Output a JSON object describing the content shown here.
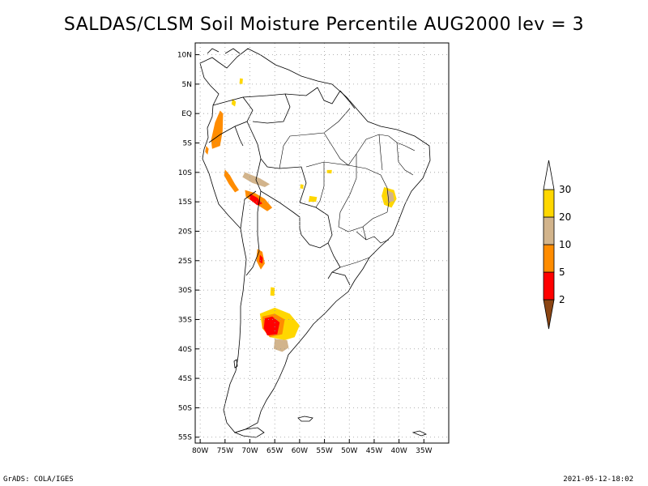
{
  "chart_data": {
    "type": "heatmap",
    "title": "SALDAS/CLSM Soil Moisture Percentile AUG2000 lev = 3",
    "map_extent": {
      "lon": [
        -81,
        -30
      ],
      "lat": [
        -56,
        12
      ]
    },
    "x_ticks": [
      {
        "lon": -80,
        "label": "80W"
      },
      {
        "lon": -75,
        "label": "75W"
      },
      {
        "lon": -70,
        "label": "70W"
      },
      {
        "lon": -65,
        "label": "65W"
      },
      {
        "lon": -60,
        "label": "60W"
      },
      {
        "lon": -55,
        "label": "55W"
      },
      {
        "lon": -50,
        "label": "50W"
      },
      {
        "lon": -45,
        "label": "45W"
      },
      {
        "lon": -40,
        "label": "40W"
      },
      {
        "lon": -35,
        "label": "35W"
      }
    ],
    "y_ticks": [
      {
        "lat": 10,
        "label": "10N"
      },
      {
        "lat": 5,
        "label": "5N"
      },
      {
        "lat": 0,
        "label": "EQ"
      },
      {
        "lat": -5,
        "label": "5S"
      },
      {
        "lat": -10,
        "label": "10S"
      },
      {
        "lat": -15,
        "label": "15S"
      },
      {
        "lat": -20,
        "label": "20S"
      },
      {
        "lat": -25,
        "label": "25S"
      },
      {
        "lat": -30,
        "label": "30S"
      },
      {
        "lat": -35,
        "label": "35S"
      },
      {
        "lat": -40,
        "label": "40S"
      },
      {
        "lat": -45,
        "label": "45S"
      },
      {
        "lat": -50,
        "label": "50S"
      },
      {
        "lat": -55,
        "label": "55S"
      }
    ],
    "grid": true,
    "colorbar": {
      "levels": [
        "2",
        "5",
        "10",
        "20",
        "30"
      ],
      "colors": [
        "#8b4513",
        "#ff0000",
        "#ff8c00",
        "#d2b48c",
        "#ffd700",
        "#ffffff"
      ]
    },
    "regions": [
      {
        "bin": 1,
        "color": "#ff0000",
        "points": [
          [
            -76.5,
            -1
          ],
          [
            -76,
            -0.5
          ],
          [
            -75.8,
            -2
          ],
          [
            -76.3,
            -4
          ],
          [
            -77,
            -5.5
          ],
          [
            -77.4,
            -5
          ],
          [
            -77,
            -3
          ]
        ]
      },
      {
        "bin": 2,
        "color": "#ff8c00",
        "points": [
          [
            -76,
            0.5
          ],
          [
            -75.4,
            0
          ],
          [
            -75.5,
            -3
          ],
          [
            -76,
            -5.5
          ],
          [
            -77.6,
            -6
          ],
          [
            -77.8,
            -4.5
          ],
          [
            -77,
            -1.5
          ]
        ]
      },
      {
        "bin": 2,
        "color": "#ff8c00",
        "points": [
          [
            -75,
            -9.5
          ],
          [
            -74,
            -10.5
          ],
          [
            -73,
            -12
          ],
          [
            -72.2,
            -13
          ],
          [
            -73,
            -13.4
          ],
          [
            -74.2,
            -12
          ],
          [
            -75.2,
            -10.5
          ]
        ]
      },
      {
        "bin": 2,
        "color": "#ff8c00",
        "points": [
          [
            -71,
            -13
          ],
          [
            -69,
            -13.5
          ],
          [
            -67,
            -14.5
          ],
          [
            -65.5,
            -16
          ],
          [
            -66.5,
            -16.6
          ],
          [
            -68.5,
            -15.5
          ],
          [
            -70.8,
            -14.2
          ]
        ]
      },
      {
        "bin": 1,
        "color": "#ff0000",
        "points": [
          [
            -70,
            -13.6
          ],
          [
            -68.5,
            -14.3
          ],
          [
            -67.5,
            -15.3
          ],
          [
            -68.5,
            -15.6
          ],
          [
            -70,
            -14.6
          ]
        ]
      },
      {
        "bin": 3,
        "color": "#d2b48c",
        "points": [
          [
            -71,
            -10
          ],
          [
            -68,
            -11
          ],
          [
            -66,
            -12
          ],
          [
            -67,
            -12.5
          ],
          [
            -69.5,
            -11.8
          ],
          [
            -71.5,
            -10.8
          ]
        ]
      },
      {
        "bin": 2,
        "color": "#ff8c00",
        "points": [
          [
            -68.5,
            -23
          ],
          [
            -67.5,
            -23.5
          ],
          [
            -67,
            -25.5
          ],
          [
            -67.8,
            -26.5
          ],
          [
            -68.7,
            -25
          ]
        ]
      },
      {
        "bin": 1,
        "color": "#ff0000",
        "points": [
          [
            -68,
            -24
          ],
          [
            -67.4,
            -24.5
          ],
          [
            -67.5,
            -25.5
          ],
          [
            -68.1,
            -25.2
          ]
        ]
      },
      {
        "bin": 4,
        "color": "#ffd700",
        "points": [
          [
            -68,
            -34
          ],
          [
            -65,
            -33
          ],
          [
            -62,
            -34
          ],
          [
            -60,
            -36
          ],
          [
            -61,
            -38
          ],
          [
            -63,
            -38.5
          ],
          [
            -66,
            -38
          ],
          [
            -67.5,
            -36.5
          ]
        ]
      },
      {
        "bin": 2,
        "color": "#ff8c00",
        "points": [
          [
            -67.5,
            -34.5
          ],
          [
            -65,
            -34
          ],
          [
            -63,
            -35
          ],
          [
            -63.5,
            -37.5
          ],
          [
            -66,
            -38
          ],
          [
            -67.5,
            -36.5
          ]
        ]
      },
      {
        "bin": 1,
        "color": "#ff0000",
        "points": [
          [
            -67,
            -34.8
          ],
          [
            -65.5,
            -34.5
          ],
          [
            -64,
            -35.5
          ],
          [
            -64.5,
            -37.5
          ],
          [
            -66.5,
            -37.7
          ],
          [
            -67.2,
            -36.5
          ]
        ]
      },
      {
        "bin": 3,
        "color": "#d2b48c",
        "points": [
          [
            -65,
            -38.3
          ],
          [
            -62.5,
            -38.5
          ],
          [
            -62.2,
            -39.8
          ],
          [
            -63.5,
            -40.5
          ],
          [
            -65.2,
            -40
          ]
        ]
      },
      {
        "bin": 4,
        "color": "#ffd700",
        "points": [
          [
            -43,
            -12.5
          ],
          [
            -41,
            -13
          ],
          [
            -40.5,
            -14.5
          ],
          [
            -41.5,
            -16
          ],
          [
            -43,
            -15.5
          ],
          [
            -43.5,
            -14
          ]
        ]
      },
      {
        "bin": 3,
        "color": "#d2b48c",
        "points": [
          [
            -42.5,
            -13
          ],
          [
            -41.2,
            -13.5
          ],
          [
            -41,
            -14.8
          ],
          [
            -42.2,
            -15.2
          ]
        ]
      },
      {
        "bin": 4,
        "color": "#ffd700",
        "points": [
          [
            -58,
            -14
          ],
          [
            -56.5,
            -14.2
          ],
          [
            -56.7,
            -15
          ],
          [
            -58.2,
            -15
          ]
        ]
      },
      {
        "bin": 4,
        "color": "#ffd700",
        "points": [
          [
            -59.8,
            -12
          ],
          [
            -59.2,
            -12.1
          ],
          [
            -59.3,
            -12.8
          ],
          [
            -59.9,
            -12.7
          ]
        ]
      },
      {
        "bin": 4,
        "color": "#ffd700",
        "points": [
          [
            -54.5,
            -9.6
          ],
          [
            -53.5,
            -9.6
          ],
          [
            -53.6,
            -10.2
          ],
          [
            -54.5,
            -10.1
          ]
        ]
      },
      {
        "bin": 4,
        "color": "#ffd700",
        "points": [
          [
            -65.8,
            -29.5
          ],
          [
            -65,
            -29.6
          ],
          [
            -65.1,
            -31
          ],
          [
            -65.9,
            -30.9
          ]
        ]
      },
      {
        "bin": 4,
        "color": "#ffd700",
        "points": [
          [
            -72,
            6
          ],
          [
            -71.4,
            5.9
          ],
          [
            -71.5,
            5
          ],
          [
            -72.1,
            5.1
          ]
        ]
      },
      {
        "bin": 4,
        "color": "#ffd700",
        "points": [
          [
            -73.5,
            2.5
          ],
          [
            -72.8,
            2
          ],
          [
            -73,
            1.2
          ],
          [
            -73.7,
            1.6
          ]
        ]
      },
      {
        "bin": 2,
        "color": "#ff8c00",
        "points": [
          [
            -78.8,
            -5.5
          ],
          [
            -78.3,
            -6
          ],
          [
            -78.5,
            -7
          ],
          [
            -79,
            -6.5
          ]
        ]
      }
    ]
  },
  "footer": {
    "left": "GrADS: COLA/IGES",
    "right": "2021-05-12-18:02"
  }
}
